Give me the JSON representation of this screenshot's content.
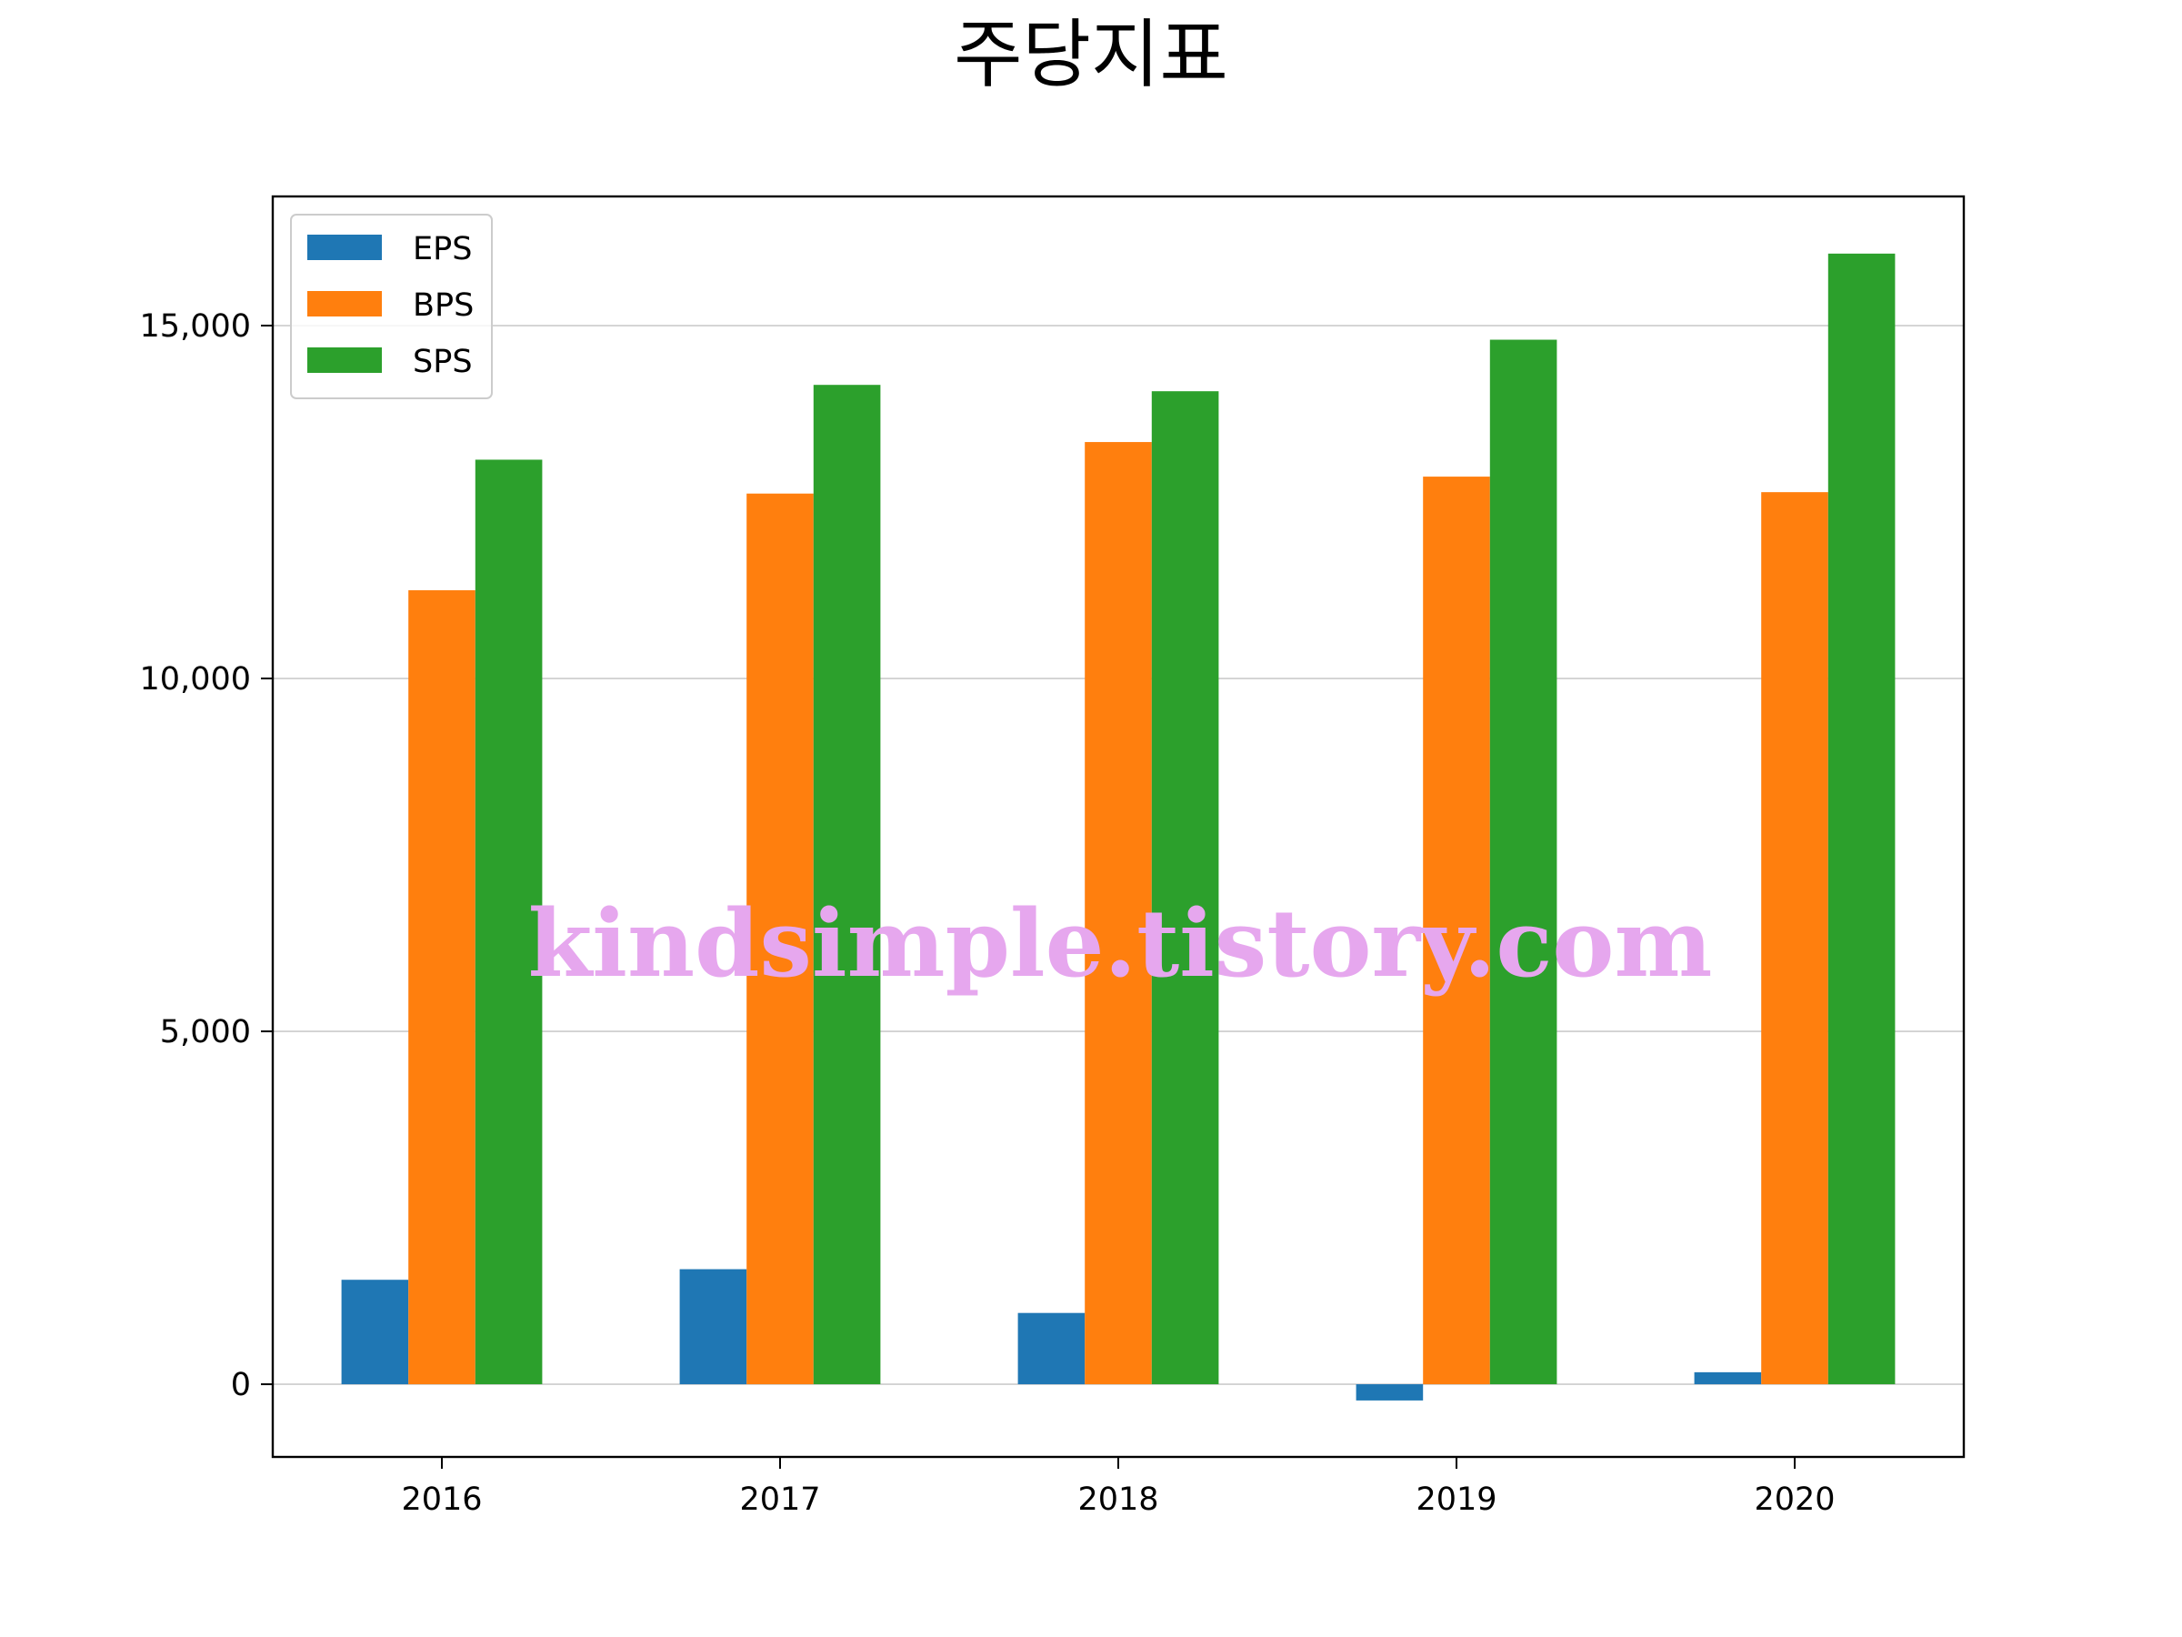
{
  "chart_data": {
    "type": "bar",
    "title": "주당지표",
    "categories": [
      "2016",
      "2017",
      "2018",
      "2019",
      "2020"
    ],
    "series": [
      {
        "name": "EPS",
        "color": "#1f77b4",
        "values": [
          1480,
          1630,
          1010,
          -230,
          170
        ]
      },
      {
        "name": "BPS",
        "color": "#ff7f0e",
        "values": [
          11250,
          12620,
          13350,
          12860,
          12640
        ]
      },
      {
        "name": "SPS",
        "color": "#2ca02c",
        "values": [
          13100,
          14160,
          14070,
          14800,
          16020
        ]
      }
    ],
    "ylim": [
      -1030,
      16830
    ],
    "yticks": [
      0,
      5000,
      10000,
      15000
    ],
    "ytick_labels": [
      "0",
      "5,000",
      "10,000",
      "15,000"
    ],
    "grid": "horizontal",
    "legend_position": "upper-left",
    "xlabel": "",
    "ylabel": ""
  },
  "watermark": "kindsimple.tistory.com"
}
